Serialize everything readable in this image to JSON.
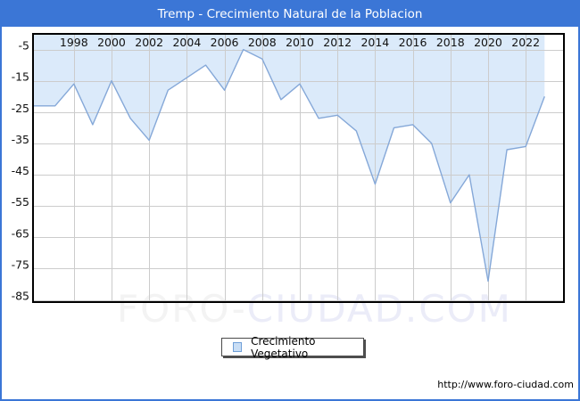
{
  "window": {
    "title": "Tremp - Crecimiento Natural de la Poblacion",
    "frame_color": "#3B76D6"
  },
  "chart_data": {
    "type": "area",
    "title": "Tremp - Crecimiento Natural de la Poblacion",
    "x": [
      1996,
      1997,
      1998,
      1999,
      2000,
      2001,
      2002,
      2003,
      2004,
      2005,
      2006,
      2007,
      2008,
      2009,
      2010,
      2011,
      2012,
      2013,
      2014,
      2015,
      2016,
      2017,
      2018,
      2019,
      2020,
      2021,
      2022,
      2023
    ],
    "series": [
      {
        "name": "Crecimiento Vegetativo",
        "values": [
          -23,
          -23,
          -16,
          -29,
          -15,
          -27,
          -34,
          -18,
          -14,
          -10,
          -18,
          -5,
          -8,
          -21,
          -16,
          -27,
          -26,
          -31,
          -48,
          -30,
          -29,
          -35,
          -54,
          -45,
          -79,
          -37,
          -36,
          -20
        ]
      }
    ],
    "xlabel": "",
    "ylabel": "",
    "x_ticks": [
      1998,
      2000,
      2002,
      2004,
      2006,
      2008,
      2010,
      2012,
      2014,
      2016,
      2018,
      2020,
      2022
    ],
    "y_ticks": [
      -5,
      -15,
      -25,
      -35,
      -45,
      -55,
      -65,
      -75,
      -85
    ],
    "xlim": [
      1995.83,
      2024.03
    ],
    "ylim": [
      0,
      -85.7
    ],
    "grid": true,
    "legend_position": "bottom-center",
    "colors": {
      "line": "#85a8d8",
      "fill": "#d7e8fa",
      "grid": "#cccccc",
      "plot_border": "#000000",
      "tick_text": "#111111"
    }
  },
  "legend": {
    "label": "Crecimiento Vegetativo"
  },
  "watermark": {
    "part1": "FORO-",
    "part2": "CIUDAD.COM"
  },
  "footer": {
    "url": "http://www.foro-ciudad.com"
  }
}
